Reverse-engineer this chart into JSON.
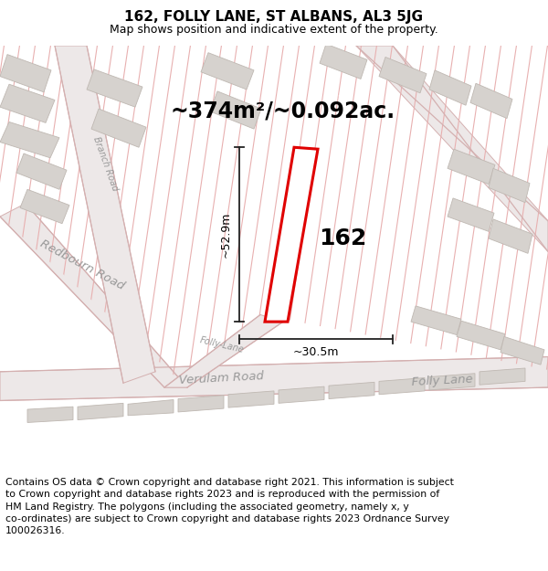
{
  "title": "162, FOLLY LANE, ST ALBANS, AL3 5JG",
  "subtitle": "Map shows position and indicative extent of the property.",
  "area_label": "~374m²/~0.092ac.",
  "dim_vertical": "~52.9m",
  "dim_horizontal": "~30.5m",
  "plot_number": "162",
  "footer": "Contains OS data © Crown copyright and database right 2021. This information is subject\nto Crown copyright and database rights 2023 and is reproduced with the permission of\nHM Land Registry. The polygons (including the associated geometry, namely x, y\nco-ordinates) are subject to Crown copyright and database rights 2023 Ordnance Survey\n100026316.",
  "bg_color": "#ffffff",
  "map_bg": "#f2f0ee",
  "road_fill": "#ede8e8",
  "road_edge": "#d4b0b0",
  "bld_fill": "#d6d2ce",
  "bld_edge": "#bfb8b2",
  "stripe_color": "#e8b0b0",
  "plot_edge": "#e00000",
  "dim_color": "#222222",
  "label_color": "#888888",
  "road_label_color": "#999999",
  "title_fontsize": 11,
  "subtitle_fontsize": 9,
  "area_fontsize": 17,
  "plot_num_fontsize": 18,
  "footer_fontsize": 7.8,
  "dim_fontsize": 9
}
